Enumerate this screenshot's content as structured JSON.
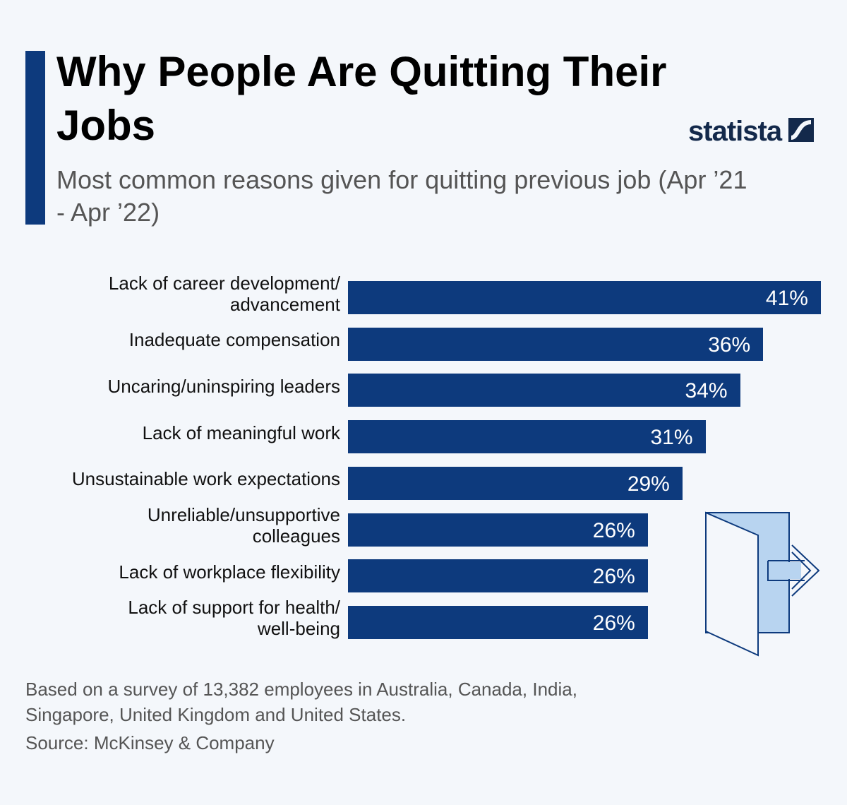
{
  "chart_data": {
    "type": "bar",
    "orientation": "horizontal",
    "title": "Why People Are Quitting Their Jobs",
    "subtitle": "Most common reasons given for quitting previous job (Apr ’21 - Apr ’22)",
    "brand": "statista",
    "categories": [
      "Lack of career development/\nadvancement",
      "Inadequate compensation",
      "Uncaring/uninspiring leaders",
      "Lack of meaningful work",
      "Unsustainable work expectations",
      "Unreliable/unsupportive\ncolleagues",
      "Lack of workplace flexibility",
      "Lack of support for health/\nwell-being"
    ],
    "values": [
      41,
      36,
      34,
      31,
      29,
      26,
      26,
      26
    ],
    "value_labels": [
      "41%",
      "36%",
      "34%",
      "31%",
      "29%",
      "26%",
      "26%",
      "26%"
    ],
    "color": "#0d3a7d",
    "note": "Based on a survey of 13,382 employees in Australia, Canada, India, Singapore, United Kingdom and United States.",
    "source": "Source: McKinsey & Company"
  }
}
